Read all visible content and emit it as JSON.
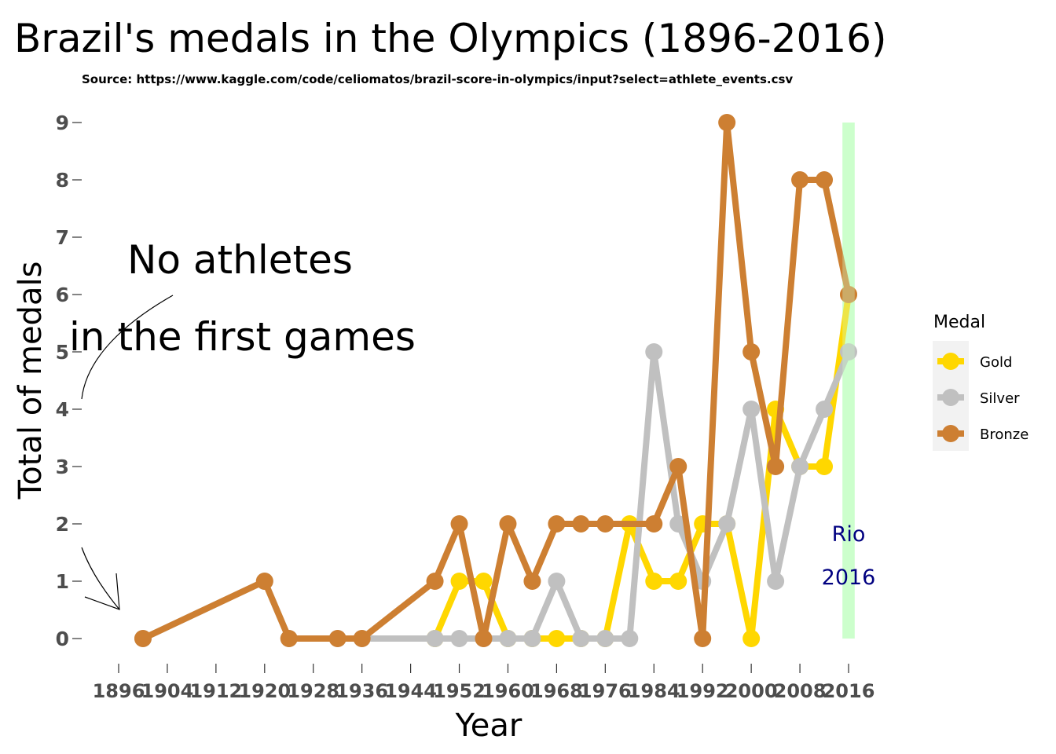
{
  "chart_data": {
    "type": "line",
    "title": "Brazil's medals in the Olympics (1896-2016)",
    "subtitle": "Source: https://www.kaggle.com/code/celiomatos/brazil-score-in-olympics/input?select=athlete_events.csv",
    "xlabel": "Year",
    "ylabel": "Total of medals",
    "xlim": [
      1896,
      2016
    ],
    "ylim": [
      0,
      9
    ],
    "x_ticks": [
      1896,
      1904,
      1912,
      1920,
      1928,
      1936,
      1944,
      1952,
      1960,
      1968,
      1976,
      1984,
      1992,
      2000,
      2008,
      2016
    ],
    "y_ticks": [
      0,
      1,
      2,
      3,
      4,
      5,
      6,
      7,
      8,
      9
    ],
    "grid": false,
    "legend": {
      "title": "Medal",
      "position": "right"
    },
    "series": [
      {
        "name": "Gold",
        "color": "#FFD700",
        "points": [
          [
            1948,
            0
          ],
          [
            1952,
            1
          ],
          [
            1956,
            1
          ],
          [
            1960,
            0
          ],
          [
            1964,
            0
          ],
          [
            1968,
            0
          ],
          [
            1972,
            0
          ],
          [
            1976,
            0
          ],
          [
            1980,
            2
          ],
          [
            1984,
            1
          ],
          [
            1988,
            1
          ],
          [
            1992,
            2
          ],
          [
            1996,
            2
          ],
          [
            2000,
            0
          ],
          [
            2004,
            4
          ],
          [
            2008,
            3
          ],
          [
            2012,
            3
          ],
          [
            2016,
            6
          ]
        ]
      },
      {
        "name": "Silver",
        "color": "#C0C0C0",
        "points": [
          [
            1900,
            0
          ],
          [
            1920,
            1
          ],
          [
            1924,
            0
          ],
          [
            1932,
            0
          ],
          [
            1936,
            0
          ],
          [
            1948,
            0
          ],
          [
            1952,
            0
          ],
          [
            1956,
            0
          ],
          [
            1960,
            0
          ],
          [
            1964,
            0
          ],
          [
            1968,
            1
          ],
          [
            1972,
            0
          ],
          [
            1976,
            0
          ],
          [
            1980,
            0
          ],
          [
            1984,
            5
          ],
          [
            1988,
            2
          ],
          [
            1992,
            1
          ],
          [
            1996,
            2
          ],
          [
            2000,
            4
          ],
          [
            2004,
            1
          ],
          [
            2008,
            3
          ],
          [
            2012,
            4
          ],
          [
            2016,
            5
          ]
        ]
      },
      {
        "name": "Bronze",
        "color": "#CD7F32",
        "points": [
          [
            1900,
            0
          ],
          [
            1920,
            1
          ],
          [
            1924,
            0
          ],
          [
            1932,
            0
          ],
          [
            1936,
            0
          ],
          [
            1948,
            1
          ],
          [
            1952,
            2
          ],
          [
            1956,
            0
          ],
          [
            1960,
            2
          ],
          [
            1964,
            1
          ],
          [
            1968,
            2
          ],
          [
            1972,
            2
          ],
          [
            1976,
            2
          ],
          [
            1984,
            2
          ],
          [
            1988,
            3
          ],
          [
            1992,
            0
          ],
          [
            1996,
            9
          ],
          [
            2000,
            5
          ],
          [
            2004,
            3
          ],
          [
            2008,
            8
          ],
          [
            2012,
            8
          ],
          [
            2016,
            6
          ]
        ]
      }
    ],
    "highlight": {
      "x_from": 2015,
      "x_to": 2017,
      "y_from": 0,
      "y_to": 9,
      "color": "#CCFFCC"
    },
    "annotations": {
      "no_athletes_line1": "No athletes",
      "no_athletes_line2": "in the first games",
      "rio_line1": "Rio",
      "rio_line2": "2016"
    }
  }
}
